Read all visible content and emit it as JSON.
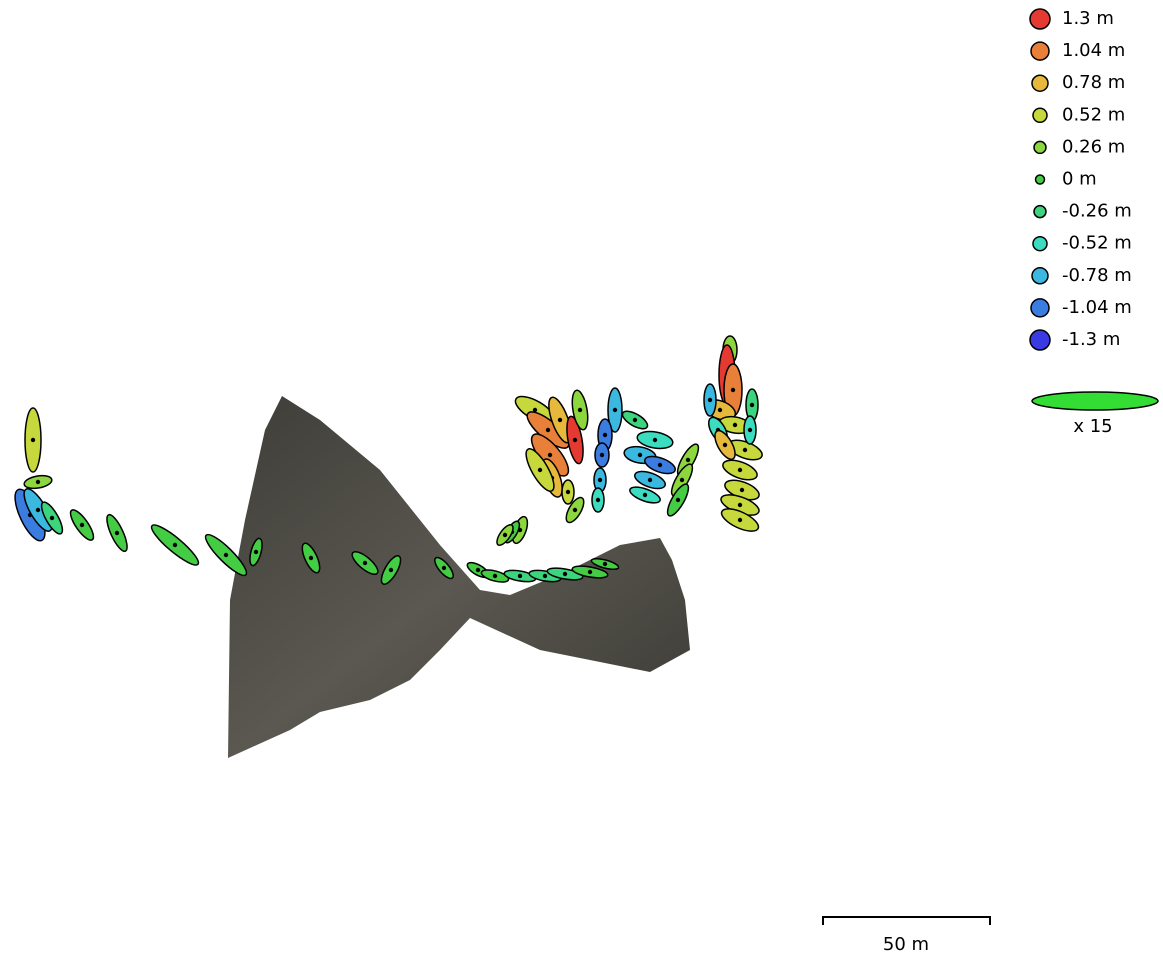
{
  "legend": {
    "items": [
      {
        "label": "1.3 m",
        "color": "#e43a32"
      },
      {
        "label": "1.04 m",
        "color": "#e8803a"
      },
      {
        "label": "0.78 m",
        "color": "#e6b83c"
      },
      {
        "label": "0.52 m",
        "color": "#c6d83c"
      },
      {
        "label": "0.26 m",
        "color": "#8cd63e"
      },
      {
        "label": "0 m",
        "color": "#44cc44"
      },
      {
        "label": "-0.26 m",
        "color": "#3cd47c"
      },
      {
        "label": "-0.52 m",
        "color": "#3cdcc0"
      },
      {
        "label": "-0.78 m",
        "color": "#3ab8e0"
      },
      {
        "label": "-1.04 m",
        "color": "#3a7ce0"
      },
      {
        "label": "-1.3 m",
        "color": "#3a3ae4"
      }
    ]
  },
  "scale_ellipse": {
    "label": "x 15"
  },
  "scale_bar": {
    "label": "50 m"
  }
}
